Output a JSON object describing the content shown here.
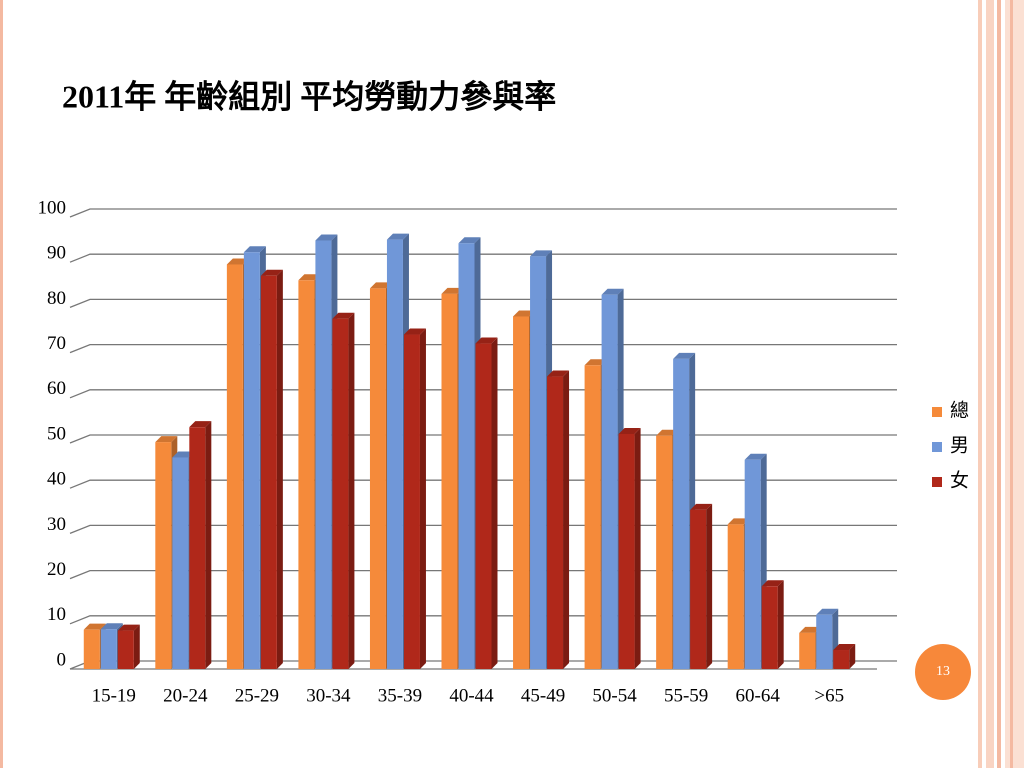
{
  "chart_data": {
    "type": "bar3d",
    "title": "2011年 年齡組別 平均勞動力參與率",
    "categories": [
      "15-19",
      "20-24",
      "25-29",
      "30-34",
      "35-39",
      "40-44",
      "45-49",
      "50-54",
      "55-59",
      "60-64",
      ">65"
    ],
    "series": [
      {
        "name": "總",
        "color": "#f58a3a",
        "values": [
          8.7,
          50.2,
          89.5,
          86,
          84.2,
          83,
          78,
          67.2,
          51.6,
          32,
          8
        ]
      },
      {
        "name": "男",
        "color": "#7097d8",
        "values": [
          8.8,
          46.8,
          92.2,
          94.8,
          95,
          94.2,
          91.3,
          82.8,
          68.6,
          46.3,
          12
        ]
      },
      {
        "name": "女",
        "color": "#b0281a",
        "values": [
          8.5,
          53.5,
          87,
          77.5,
          74,
          72,
          64.7,
          52,
          35.2,
          18.3,
          4.2
        ]
      }
    ],
    "ylim": [
      0,
      100
    ],
    "yticks": [
      0,
      10,
      20,
      30,
      40,
      50,
      60,
      70,
      80,
      90,
      100
    ],
    "grid": true,
    "legend": "right"
  },
  "slide_number": "13"
}
